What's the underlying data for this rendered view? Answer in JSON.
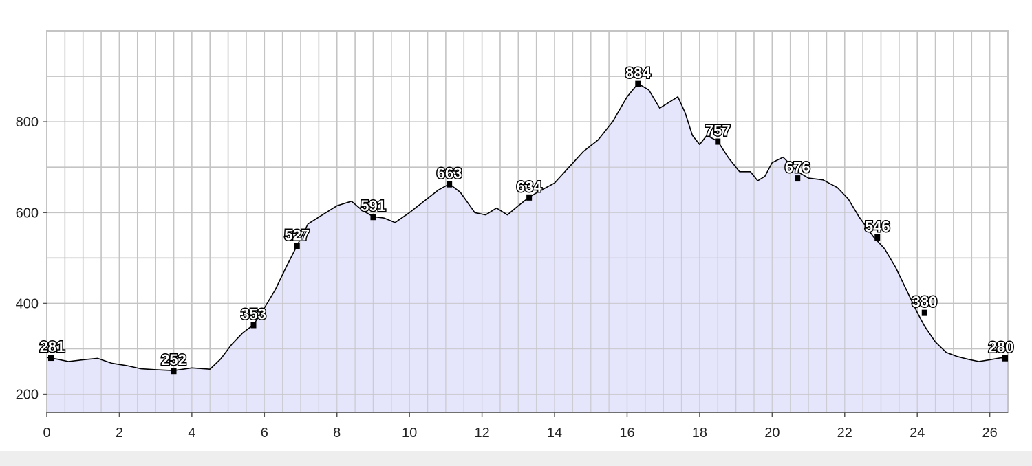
{
  "chart_data": {
    "type": "area",
    "title": "",
    "xlabel": "",
    "ylabel": "",
    "xlim": [
      0,
      26.5
    ],
    "ylim": [
      160,
      1000
    ],
    "grid": true,
    "x_ticks": [
      0,
      2,
      4,
      6,
      8,
      10,
      12,
      14,
      16,
      18,
      20,
      22,
      24,
      26
    ],
    "y_ticks": [
      200,
      400,
      600,
      800
    ],
    "colors": {
      "fill": "#e0e0fa",
      "line": "#000000",
      "grid": "#c4c4c4",
      "marker": "#000000"
    },
    "series": [
      {
        "x": [
          0,
          0.3,
          0.6,
          1.0,
          1.4,
          1.8,
          2.2,
          2.6,
          3.0,
          3.5,
          4.0,
          4.5,
          4.8,
          5.1,
          5.4,
          5.7,
          6.0,
          6.3,
          6.6,
          6.9,
          7.2,
          7.6,
          8.0,
          8.4,
          8.7,
          9.0,
          9.3,
          9.6,
          10.0,
          10.4,
          10.8,
          11.1,
          11.4,
          11.8,
          12.1,
          12.4,
          12.7,
          13.0,
          13.3,
          13.6,
          14.0,
          14.4,
          14.8,
          15.2,
          15.6,
          16.0,
          16.3,
          16.6,
          16.9,
          17.1,
          17.4,
          17.6,
          17.8,
          18.0,
          18.2,
          18.5,
          18.8,
          19.1,
          19.4,
          19.6,
          19.8,
          20.0,
          20.3,
          20.7,
          21.0,
          21.4,
          21.8,
          22.1,
          22.4,
          22.8,
          23.1,
          23.4,
          23.7,
          24.0,
          24.2,
          24.5,
          24.8,
          25.1,
          25.4,
          25.7,
          26.0,
          26.3,
          26.5
        ],
        "y": [
          281,
          277,
          272,
          276,
          279,
          268,
          263,
          256,
          254,
          252,
          258,
          255,
          278,
          310,
          335,
          353,
          390,
          430,
          480,
          527,
          575,
          595,
          615,
          625,
          605,
          591,
          588,
          578,
          600,
          625,
          650,
          663,
          645,
          600,
          595,
          610,
          595,
          615,
          634,
          648,
          665,
          700,
          735,
          760,
          800,
          855,
          884,
          870,
          830,
          840,
          855,
          820,
          770,
          750,
          770,
          757,
          720,
          690,
          690,
          670,
          680,
          710,
          722,
          690,
          676,
          672,
          655,
          630,
          590,
          546,
          520,
          480,
          430,
          380,
          350,
          315,
          292,
          283,
          277,
          272,
          276,
          280,
          280
        ]
      }
    ],
    "annotations": [
      {
        "x": 0,
        "y": 281,
        "label": "281"
      },
      {
        "x": 3.5,
        "y": 252,
        "label": "252"
      },
      {
        "x": 5.7,
        "y": 353,
        "label": "353"
      },
      {
        "x": 6.9,
        "y": 527,
        "label": "527"
      },
      {
        "x": 9.0,
        "y": 591,
        "label": "591"
      },
      {
        "x": 11.1,
        "y": 663,
        "label": "663"
      },
      {
        "x": 13.3,
        "y": 634,
        "label": "634"
      },
      {
        "x": 16.3,
        "y": 884,
        "label": "884"
      },
      {
        "x": 18.5,
        "y": 757,
        "label": "757"
      },
      {
        "x": 20.7,
        "y": 676,
        "label": "676"
      },
      {
        "x": 22.9,
        "y": 546,
        "label": "546"
      },
      {
        "x": 24.2,
        "y": 380,
        "label": "380"
      },
      {
        "x": 26.5,
        "y": 280,
        "label": "280"
      }
    ]
  }
}
